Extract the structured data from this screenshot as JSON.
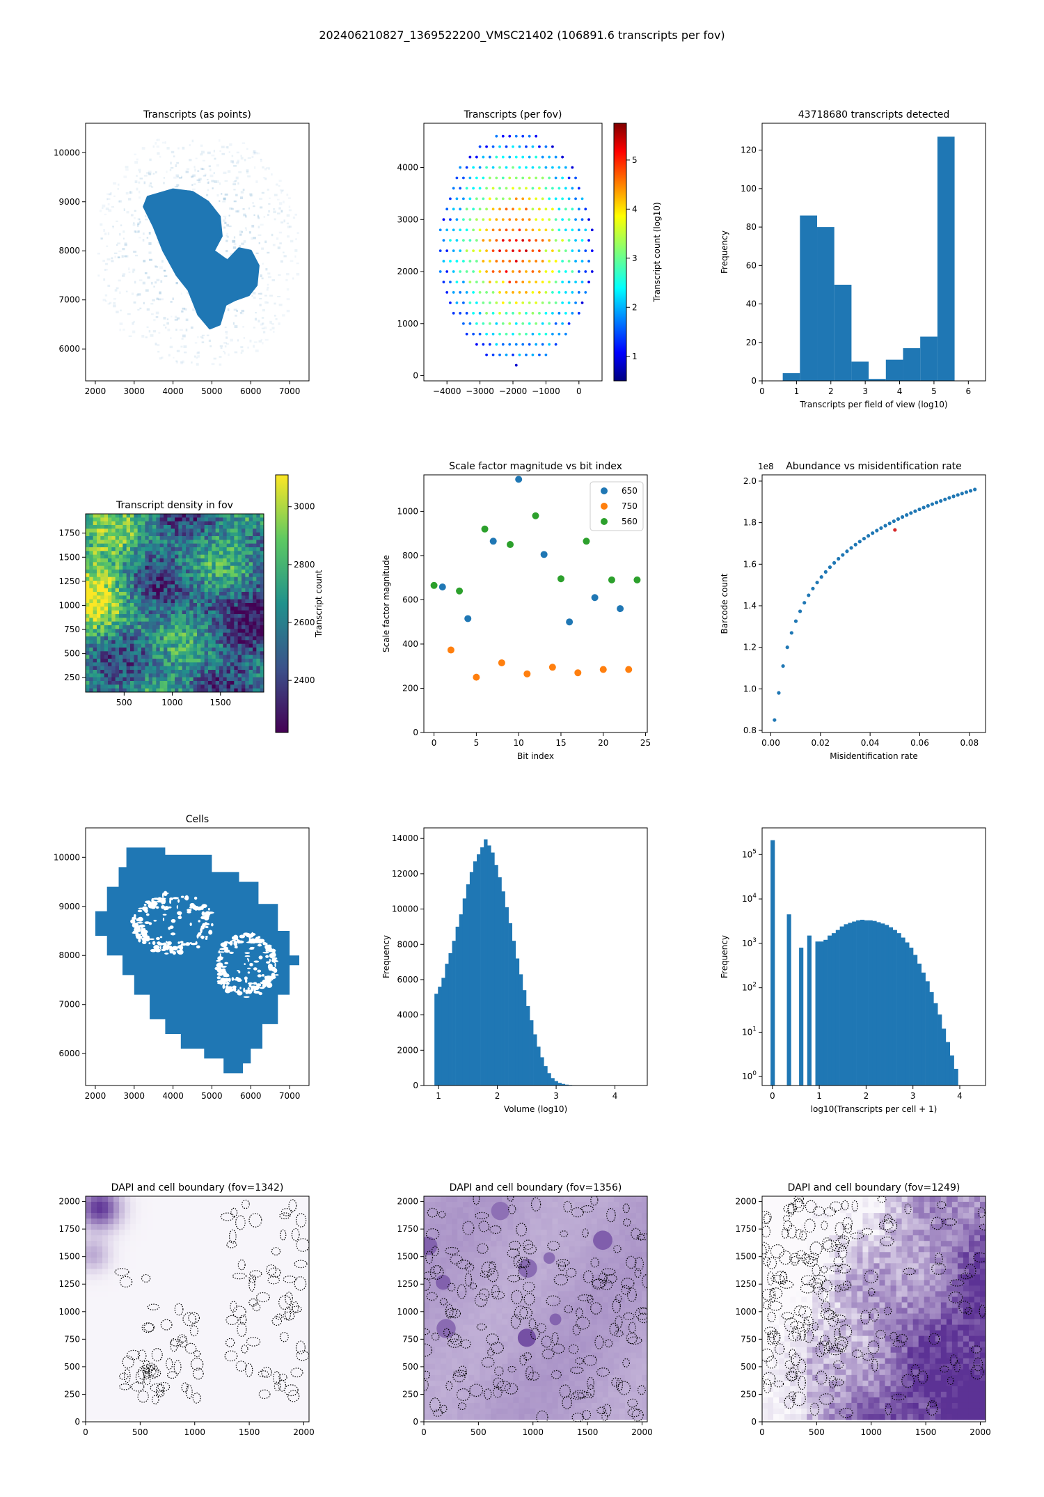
{
  "figure": {
    "title": "202406210827_1369522200_VMSC21402 (106891.6 transcripts per fov)"
  },
  "colors": {
    "blue": "#1f77b4",
    "orange": "#ff7f0e",
    "green": "#2ca02c",
    "red": "#d62728"
  },
  "chart_data": [
    {
      "id": "transcripts-points",
      "type": "scatter",
      "title": "Transcripts (as points)",
      "xlim": [
        1750,
        7500
      ],
      "ylim": [
        5350,
        10600
      ],
      "xticks": [
        2000,
        3000,
        4000,
        5000,
        6000,
        7000
      ],
      "yticks": [
        6000,
        7000,
        8000,
        9000,
        10000
      ],
      "tissue_outline": [
        [
          3350,
          9100
        ],
        [
          4000,
          9250
        ],
        [
          4500,
          9200
        ],
        [
          4900,
          9000
        ],
        [
          5200,
          8700
        ],
        [
          5250,
          8300
        ],
        [
          5050,
          8000
        ],
        [
          5400,
          7800
        ],
        [
          5700,
          8050
        ],
        [
          6000,
          8000
        ],
        [
          6200,
          7700
        ],
        [
          6150,
          7300
        ],
        [
          5950,
          7100
        ],
        [
          5600,
          7000
        ],
        [
          5350,
          6900
        ],
        [
          5200,
          6500
        ],
        [
          4950,
          6420
        ],
        [
          4650,
          6700
        ],
        [
          4400,
          7200
        ],
        [
          4100,
          7500
        ],
        [
          3750,
          8000
        ],
        [
          3500,
          8500
        ],
        [
          3250,
          8900
        ]
      ]
    },
    {
      "id": "transcripts-per-fov",
      "type": "scatter",
      "title": "Transcripts (per fov)",
      "xlim": [
        -4700,
        700
      ],
      "ylim": [
        -100,
        4850
      ],
      "xticks": [
        -4000,
        -3000,
        -2000,
        -1000,
        0
      ],
      "yticks": [
        0,
        1000,
        2000,
        3000,
        4000
      ],
      "colorbar": {
        "label": "Transcript count (log10)",
        "min": 0.5,
        "max": 5.75,
        "ticks": [
          1,
          2,
          3,
          4,
          5
        ],
        "colormap": "jet"
      },
      "grid_step": 200
    },
    {
      "id": "transcripts-hist",
      "type": "bar",
      "title": "43718680 transcripts detected",
      "xlabel": "Transcripts per field of view (log10)",
      "ylabel": "Frequency",
      "xlim": [
        0,
        6.5
      ],
      "ylim": [
        0,
        134
      ],
      "xticks": [
        0,
        1,
        2,
        3,
        4,
        5,
        6
      ],
      "yticks": [
        0,
        20,
        40,
        60,
        80,
        100,
        120
      ],
      "bin_edges": [
        0.6,
        1.1,
        1.6,
        2.1,
        2.6,
        3.1,
        3.6,
        4.1,
        4.6,
        5.1,
        5.6
      ],
      "values": [
        4,
        86,
        80,
        50,
        10,
        1,
        11,
        17,
        23,
        127
      ]
    },
    {
      "id": "density-heatmap",
      "type": "heatmap",
      "title": "Transcript density in fov",
      "xlim": [
        100,
        1950
      ],
      "ylim": [
        100,
        1950
      ],
      "xticks": [
        500,
        1000,
        1500
      ],
      "yticks": [
        250,
        500,
        750,
        1000,
        1250,
        1500,
        1750
      ],
      "colorbar": {
        "label": "Transcript count",
        "min": 2220,
        "max": 3110,
        "ticks": [
          2400,
          2600,
          2800,
          3000
        ],
        "colormap": "viridis"
      }
    },
    {
      "id": "scale-factor",
      "type": "scatter",
      "title": "Scale factor magnitude vs bit index",
      "xlabel": "Bit index",
      "ylabel": "Scale factor magnitude",
      "xlim": [
        -1.2,
        25.2
      ],
      "ylim": [
        0,
        1165
      ],
      "xticks": [
        0,
        5,
        10,
        15,
        20,
        25
      ],
      "yticks": [
        0,
        200,
        400,
        600,
        800,
        1000
      ],
      "legend": "top-right",
      "series": [
        {
          "name": "650",
          "x": [
            1,
            4,
            7,
            10,
            13,
            16,
            19,
            22
          ],
          "y": [
            658,
            515,
            865,
            1145,
            805,
            500,
            610,
            560
          ]
        },
        {
          "name": "750",
          "x": [
            2,
            5,
            8,
            11,
            14,
            17,
            20,
            23
          ],
          "y": [
            373,
            250,
            315,
            265,
            295,
            270,
            285,
            285
          ]
        },
        {
          "name": "560",
          "x": [
            0,
            3,
            6,
            9,
            12,
            15,
            18,
            21,
            24
          ],
          "y": [
            665,
            640,
            920,
            850,
            980,
            695,
            865,
            690,
            690
          ]
        }
      ]
    },
    {
      "id": "abundance-misid",
      "type": "scatter",
      "title": "Abundance vs misidentification rate",
      "xlabel": "Misidentification rate",
      "ylabel": "Barcode count",
      "offset_label": "1e8",
      "xlim": [
        -0.0035,
        0.0865
      ],
      "ylim": [
        0.79,
        2.03
      ],
      "xticks": [
        0.0,
        0.02,
        0.04,
        0.06,
        0.08
      ],
      "yticks": [
        0.8,
        1.0,
        1.2,
        1.4,
        1.6,
        1.8,
        2.0
      ],
      "highlight": {
        "x": 0.05,
        "y": 1.765
      }
    },
    {
      "id": "cells",
      "type": "scatter",
      "title": "Cells",
      "xlim": [
        1750,
        7500
      ],
      "ylim": [
        5350,
        10600
      ],
      "xticks": [
        2000,
        3000,
        4000,
        5000,
        6000,
        7000
      ],
      "yticks": [
        6000,
        7000,
        8000,
        9000,
        10000
      ],
      "outline": [
        [
          2800,
          10200
        ],
        [
          3800,
          10200
        ],
        [
          3800,
          10050
        ],
        [
          5000,
          10050
        ],
        [
          5000,
          9700
        ],
        [
          5700,
          9700
        ],
        [
          5700,
          9500
        ],
        [
          6200,
          9500
        ],
        [
          6200,
          9050
        ],
        [
          6700,
          9050
        ],
        [
          6700,
          8500
        ],
        [
          7000,
          8500
        ],
        [
          7000,
          8000
        ],
        [
          7250,
          8000
        ],
        [
          7250,
          7800
        ],
        [
          7000,
          7800
        ],
        [
          7000,
          7200
        ],
        [
          6700,
          7200
        ],
        [
          6700,
          6600
        ],
        [
          6300,
          6600
        ],
        [
          6300,
          6100
        ],
        [
          6000,
          6100
        ],
        [
          6000,
          5800
        ],
        [
          5800,
          5800
        ],
        [
          5800,
          5600
        ],
        [
          5300,
          5600
        ],
        [
          5300,
          5900
        ],
        [
          4800,
          5900
        ],
        [
          4800,
          6100
        ],
        [
          4200,
          6100
        ],
        [
          4200,
          6400
        ],
        [
          3800,
          6400
        ],
        [
          3800,
          6700
        ],
        [
          3400,
          6700
        ],
        [
          3400,
          7200
        ],
        [
          3000,
          7200
        ],
        [
          3000,
          7600
        ],
        [
          2700,
          7600
        ],
        [
          2700,
          8000
        ],
        [
          2300,
          8000
        ],
        [
          2300,
          8400
        ],
        [
          2000,
          8400
        ],
        [
          2000,
          8900
        ],
        [
          2300,
          8900
        ],
        [
          2300,
          9400
        ],
        [
          2600,
          9400
        ],
        [
          2600,
          9800
        ],
        [
          2800,
          9800
        ]
      ]
    },
    {
      "id": "volume-hist",
      "type": "bar",
      "xlabel": "Volume (log10)",
      "ylabel": "Frequency",
      "xlim": [
        0.75,
        4.55
      ],
      "ylim": [
        0,
        14600
      ],
      "xticks": [
        1,
        2,
        3,
        4
      ],
      "yticks": [
        0,
        2000,
        4000,
        6000,
        8000,
        10000,
        12000,
        14000
      ],
      "bin_start": 0.93,
      "bin_width": 0.06,
      "values": [
        5200,
        5600,
        6100,
        6900,
        7500,
        8200,
        9000,
        9700,
        10600,
        11400,
        12100,
        12700,
        13100,
        13500,
        13950,
        13600,
        13200,
        12500,
        11800,
        11000,
        10100,
        9200,
        8200,
        7200,
        6300,
        5400,
        4500,
        3700,
        2900,
        2200,
        1600,
        1100,
        700,
        420,
        250,
        150,
        90,
        50,
        30,
        20,
        15,
        10,
        8,
        5,
        4,
        3,
        2
      ]
    },
    {
      "id": "transcripts-per-cell-hist",
      "type": "bar",
      "xlabel": "log10(Transcripts per cell + 1)",
      "ylabel": "Frequency",
      "yscale": "log",
      "xlim": [
        -0.22,
        4.55
      ],
      "ylim_log10": [
        -0.2,
        5.6
      ],
      "xticks": [
        0,
        1,
        2,
        3,
        4
      ],
      "ytick_labels": [
        "10^0",
        "10^1",
        "10^2",
        "10^3",
        "10^4",
        "10^5"
      ],
      "bin_start": -0.04,
      "bin_width": 0.087,
      "values": [
        210000,
        0,
        0,
        0,
        4500,
        0,
        0,
        800,
        0,
        1500,
        0,
        1100,
        1100,
        1200,
        1500,
        1700,
        2000,
        2400,
        2700,
        2900,
        3100,
        3300,
        3400,
        3300,
        3300,
        3200,
        3000,
        2800,
        2600,
        2300,
        2000,
        1700,
        1350,
        1050,
        800,
        550,
        350,
        220,
        140,
        80,
        45,
        25,
        12,
        6,
        3,
        1.5
      ]
    },
    {
      "id": "dapi-1342",
      "type": "heatmap",
      "title": "DAPI and cell boundary (fov=1342)",
      "xlim": [
        0,
        2048
      ],
      "ylim": [
        0,
        2048
      ],
      "xticks": [
        0,
        500,
        1000,
        1500,
        2000
      ],
      "yticks": [
        0,
        250,
        500,
        750,
        1000,
        1250,
        1500,
        1750,
        2000
      ]
    },
    {
      "id": "dapi-1356",
      "type": "heatmap",
      "title": "DAPI and cell boundary (fov=1356)",
      "xlim": [
        0,
        2048
      ],
      "ylim": [
        0,
        2048
      ],
      "xticks": [
        0,
        500,
        1000,
        1500,
        2000
      ],
      "yticks": [
        0,
        250,
        500,
        750,
        1000,
        1250,
        1500,
        1750,
        2000
      ]
    },
    {
      "id": "dapi-1249",
      "type": "heatmap",
      "title": "DAPI and cell boundary (fov=1249)",
      "xlim": [
        0,
        2048
      ],
      "ylim": [
        0,
        2048
      ],
      "xticks": [
        0,
        500,
        1000,
        1500,
        2000
      ],
      "yticks": [
        0,
        250,
        500,
        750,
        1000,
        1250,
        1500,
        1750,
        2000
      ]
    }
  ]
}
